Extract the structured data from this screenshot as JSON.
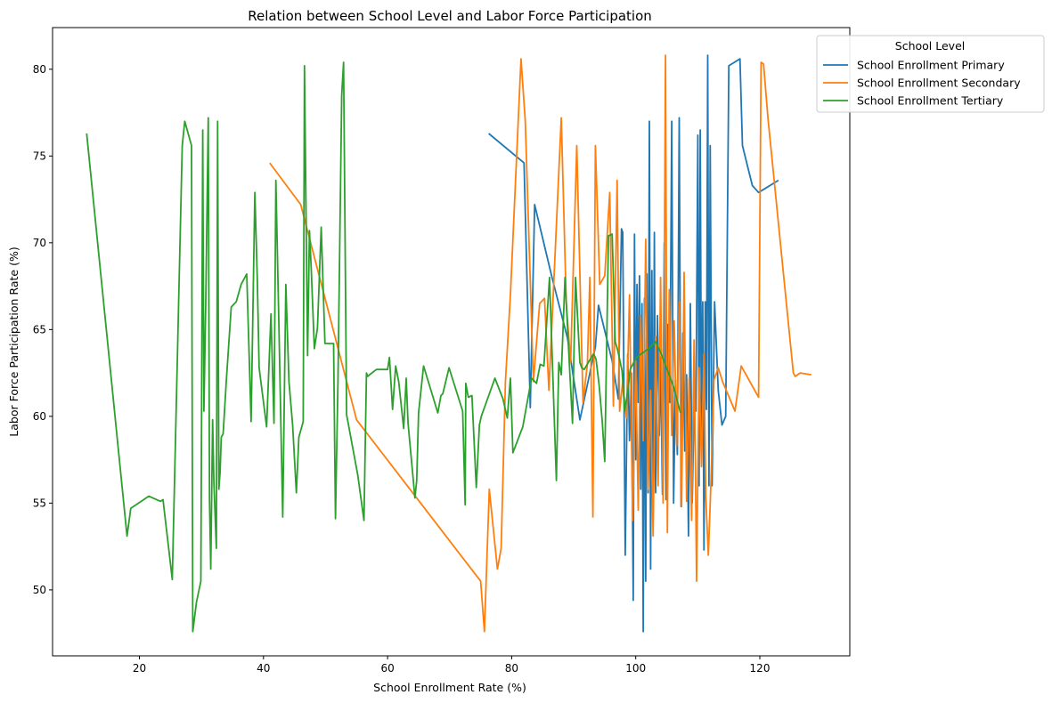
{
  "chart_data": {
    "type": "line",
    "title": "Relation between School Level and Labor Force Participation",
    "xlabel": "School Enrollment Rate (%)",
    "ylabel": "Labor Force Participation Rate (%)",
    "xlim": [
      6.0,
      134.5
    ],
    "ylim": [
      46.2,
      82.4
    ],
    "xticks": [
      20,
      40,
      60,
      80,
      100,
      120
    ],
    "yticks": [
      50,
      55,
      60,
      65,
      70,
      75,
      80
    ],
    "grid": false,
    "legend": {
      "title": "School Level",
      "placement": "top-right, outside plot"
    },
    "series": [
      {
        "name": "School Enrollment Primary",
        "color": "#1f77b4",
        "x": [
          76.3,
          82.0,
          83.0,
          83.7,
          86.5,
          89.0,
          91.0,
          93.5,
          94.0,
          96.2,
          97.2,
          97.7,
          97.9,
          98.3,
          98.7,
          99.0,
          99.3,
          99.6,
          99.8,
          100.0,
          100.2,
          100.4,
          100.6,
          100.8,
          101.0,
          101.2,
          101.4,
          101.6,
          101.8,
          102.0,
          102.2,
          102.4,
          102.6,
          102.8,
          103.0,
          103.2,
          103.5,
          103.8,
          104.0,
          104.3,
          104.6,
          104.9,
          105.2,
          105.5,
          105.8,
          106.1,
          106.4,
          106.7,
          107.0,
          107.3,
          107.6,
          107.9,
          108.2,
          108.5,
          108.8,
          109.1,
          109.4,
          109.7,
          110.0,
          110.2,
          110.4,
          110.6,
          110.8,
          111.0,
          111.2,
          111.4,
          111.6,
          111.8,
          112.0,
          112.3,
          112.7,
          113.3,
          113.9,
          114.5,
          115.0,
          116.8,
          117.2,
          118.8,
          119.8,
          123.0
        ],
        "y": [
          76.3,
          74.6,
          60.5,
          72.2,
          68.0,
          64.5,
          59.8,
          64.0,
          66.4,
          63.2,
          61.0,
          70.8,
          70.6,
          52.0,
          63.6,
          58.6,
          62.5,
          49.4,
          70.5,
          57.5,
          67.6,
          60.8,
          68.1,
          55.8,
          66.5,
          47.6,
          66.8,
          50.5,
          68.2,
          55.6,
          77.0,
          51.2,
          68.4,
          54.0,
          70.6,
          55.6,
          65.8,
          58.9,
          63.4,
          55.5,
          70.0,
          55.2,
          65.3,
          60.8,
          77.0,
          55.0,
          62.1,
          57.8,
          77.2,
          54.8,
          64.8,
          58.0,
          62.4,
          53.1,
          66.5,
          55.0,
          60.7,
          60.3,
          76.2,
          56.0,
          76.5,
          58.6,
          66.6,
          52.3,
          66.6,
          60.4,
          80.8,
          56.0,
          75.6,
          56.0,
          66.6,
          61.5,
          59.5,
          60.0,
          80.2,
          80.6,
          75.6,
          73.3,
          72.9,
          73.6
        ]
      },
      {
        "name": "School Enrollment Secondary",
        "color": "#ff7f0e",
        "x": [
          41.0,
          46.0,
          55.0,
          75.0,
          75.6,
          76.4,
          77.7,
          78.3,
          79.0,
          79.8,
          81.5,
          82.2,
          83.5,
          84.5,
          85.3,
          86.0,
          88.0,
          88.8,
          89.5,
          90.5,
          91.5,
          92.2,
          92.6,
          93.1,
          93.5,
          94.2,
          95.0,
          95.8,
          96.4,
          97.0,
          97.4,
          97.9,
          98.5,
          99.0,
          99.5,
          100.0,
          100.4,
          100.8,
          101.2,
          101.6,
          102.0,
          102.4,
          102.8,
          103.2,
          103.6,
          104.0,
          104.4,
          104.8,
          105.1,
          105.4,
          105.8,
          106.2,
          106.6,
          107.0,
          107.4,
          107.8,
          108.2,
          108.6,
          109.0,
          109.4,
          109.8,
          110.2,
          110.6,
          111.0,
          111.3,
          111.7,
          112.1,
          112.6,
          113.3,
          114.0,
          116.0,
          117.0,
          119.8,
          120.2,
          120.6,
          121.3,
          125.4,
          125.7,
          126.5,
          128.3
        ],
        "y": [
          74.6,
          72.2,
          59.8,
          50.5,
          47.6,
          55.8,
          51.2,
          52.4,
          62.0,
          67.0,
          80.6,
          77.0,
          62.0,
          66.5,
          66.8,
          61.5,
          77.2,
          66.5,
          63.1,
          75.6,
          60.8,
          63.0,
          68.0,
          54.2,
          75.6,
          67.6,
          68.1,
          72.9,
          60.6,
          73.6,
          60.3,
          62.0,
          59.9,
          67.0,
          54.0,
          63.2,
          54.6,
          65.8,
          58.6,
          70.2,
          55.8,
          61.5,
          53.1,
          64.6,
          56.0,
          68.0,
          55.0,
          80.8,
          53.3,
          67.3,
          58.9,
          65.5,
          58.3,
          66.6,
          54.8,
          68.3,
          55.1,
          62.2,
          54.0,
          64.4,
          50.5,
          62.8,
          57.1,
          63.6,
          55.3,
          52.0,
          56.0,
          62.1,
          62.8,
          62.0,
          60.3,
          62.9,
          61.1,
          80.4,
          80.3,
          77.2,
          62.5,
          62.3,
          62.5,
          62.4
        ]
      },
      {
        "name": "School Enrollment Tertiary",
        "color": "#2ca02c",
        "x": [
          11.5,
          18.0,
          18.6,
          21.5,
          23.4,
          23.8,
          25.3,
          26.9,
          27.3,
          28.4,
          28.6,
          29.2,
          29.9,
          30.2,
          30.4,
          30.7,
          31.1,
          31.3,
          31.5,
          31.8,
          32.0,
          32.4,
          32.6,
          32.8,
          33.0,
          33.2,
          33.5,
          34.0,
          34.8,
          35.6,
          36.4,
          37.3,
          38.0,
          38.6,
          39.0,
          39.3,
          40.5,
          41.2,
          41.7,
          42.0,
          42.5,
          43.1,
          43.6,
          44.1,
          44.7,
          45.3,
          45.7,
          46.4,
          46.6,
          47.1,
          47.4,
          47.7,
          48.2,
          48.7,
          49.3,
          49.9,
          50.2,
          51.3,
          51.6,
          52.0,
          52.6,
          52.9,
          53.4,
          55.2,
          56.2,
          56.6,
          56.8,
          57.1,
          58.2,
          59.1,
          60.0,
          60.3,
          60.8,
          61.3,
          61.8,
          62.6,
          63.0,
          63.3,
          64.4,
          64.7,
          65.0,
          65.8,
          68.1,
          68.6,
          68.9,
          69.9,
          72.1,
          72.5,
          72.6,
          73.0,
          73.6,
          74.3,
          74.8,
          75.1,
          77.3,
          78.6,
          79.3,
          79.8,
          80.2,
          81.8,
          83.2,
          84.0,
          84.6,
          85.2,
          86.1,
          87.2,
          87.6,
          88.0,
          88.6,
          89.3,
          89.8,
          90.3,
          91.0,
          91.3,
          91.7,
          92.5,
          93.2,
          93.6,
          94.1,
          94.6,
          95.0,
          95.6,
          96.2,
          96.7,
          97.1,
          97.8,
          98.2,
          98.7,
          99.1,
          100.1,
          102.1,
          103.2,
          104.0,
          106.1,
          107.2
        ],
        "y": [
          76.3,
          53.1,
          54.7,
          55.4,
          55.1,
          55.2,
          50.6,
          75.6,
          77.0,
          75.6,
          47.6,
          49.3,
          50.5,
          76.5,
          60.3,
          66.6,
          77.2,
          55.2,
          51.2,
          59.8,
          56.2,
          52.4,
          77.0,
          55.8,
          56.8,
          58.8,
          59.0,
          62.0,
          66.3,
          66.6,
          67.6,
          68.2,
          59.7,
          72.9,
          68.0,
          62.8,
          59.4,
          65.9,
          59.6,
          73.6,
          65.0,
          54.2,
          67.6,
          62.0,
          59.5,
          55.6,
          58.8,
          59.7,
          80.2,
          63.5,
          70.7,
          68.5,
          63.9,
          65.1,
          70.9,
          64.2,
          64.2,
          64.2,
          54.1,
          62.0,
          78.5,
          80.4,
          60.1,
          56.6,
          54.0,
          62.5,
          62.3,
          62.4,
          62.7,
          62.7,
          62.7,
          63.4,
          60.4,
          62.9,
          62.0,
          59.3,
          62.2,
          59.6,
          55.3,
          56.3,
          60.2,
          62.9,
          60.2,
          61.2,
          61.3,
          62.8,
          60.3,
          54.9,
          61.9,
          61.1,
          61.2,
          55.9,
          59.5,
          60.0,
          62.2,
          61.0,
          59.9,
          62.2,
          57.9,
          59.4,
          62.2,
          61.9,
          63.0,
          62.9,
          68.0,
          56.3,
          63.1,
          62.4,
          68.0,
          63.0,
          59.6,
          68.0,
          63.1,
          62.8,
          62.7,
          63.2,
          63.6,
          63.3,
          61.8,
          59.7,
          57.4,
          70.4,
          70.5,
          64.3,
          63.8,
          62.6,
          60.3,
          61.4,
          62.7,
          63.4,
          63.9,
          64.3,
          63.7,
          61.7,
          60.2
        ]
      }
    ]
  }
}
